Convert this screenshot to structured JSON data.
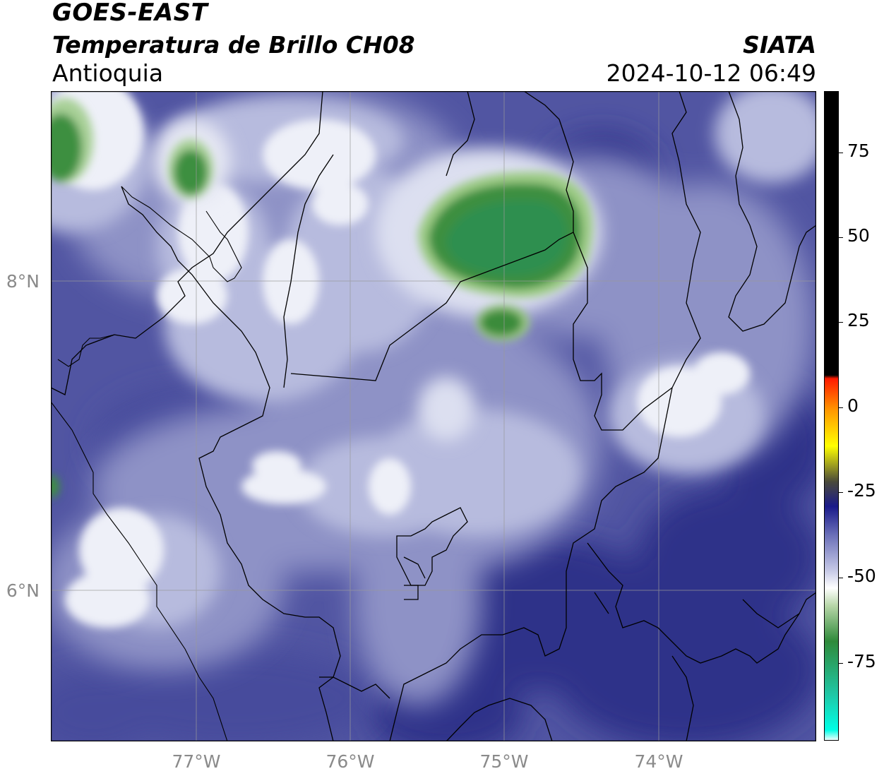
{
  "header": {
    "satellite": "GOES-EAST",
    "product": "Temperatura de Brillo CH08",
    "region": "Antioquia",
    "organization": "SIATA",
    "timestamp": "2024-10-12 06:49"
  },
  "map": {
    "latitude_labels": [
      "8°N",
      "6°N"
    ],
    "longitude_labels": [
      "77°W",
      "76°W",
      "75°W",
      "74°W"
    ],
    "colors": {
      "background_base": "#4f539e",
      "dark_blue": "#2c2f88",
      "light_lavender": "#b4b8dc",
      "white_cloud": "#eef0f8",
      "green_core": "#2f8a3a",
      "border": "#000000",
      "gridline": "#9a9a9a"
    }
  },
  "colorbar": {
    "tick_labels": [
      "75",
      "50",
      "25",
      "0",
      "-25",
      "-50",
      "-75"
    ],
    "stops": [
      {
        "value": 90,
        "color": "#000000"
      },
      {
        "value": 10,
        "color": "#000000"
      },
      {
        "value": 9,
        "color": "#ff1a00"
      },
      {
        "value": 0,
        "color": "#ff9900"
      },
      {
        "value": -10,
        "color": "#ffff00"
      },
      {
        "value": -20,
        "color": "#4a4a3a"
      },
      {
        "value": -27,
        "color": "#1a1a8a"
      },
      {
        "value": -35,
        "color": "#6a6fb8"
      },
      {
        "value": -45,
        "color": "#c5c8e6"
      },
      {
        "value": -50,
        "color": "#ffffff"
      },
      {
        "value": -55,
        "color": "#b7d6a8"
      },
      {
        "value": -65,
        "color": "#2f8a3a"
      },
      {
        "value": -80,
        "color": "#20c7a6"
      },
      {
        "value": -90,
        "color": "#00ffe6"
      },
      {
        "value": -93,
        "color": "#ffffff"
      }
    ]
  }
}
